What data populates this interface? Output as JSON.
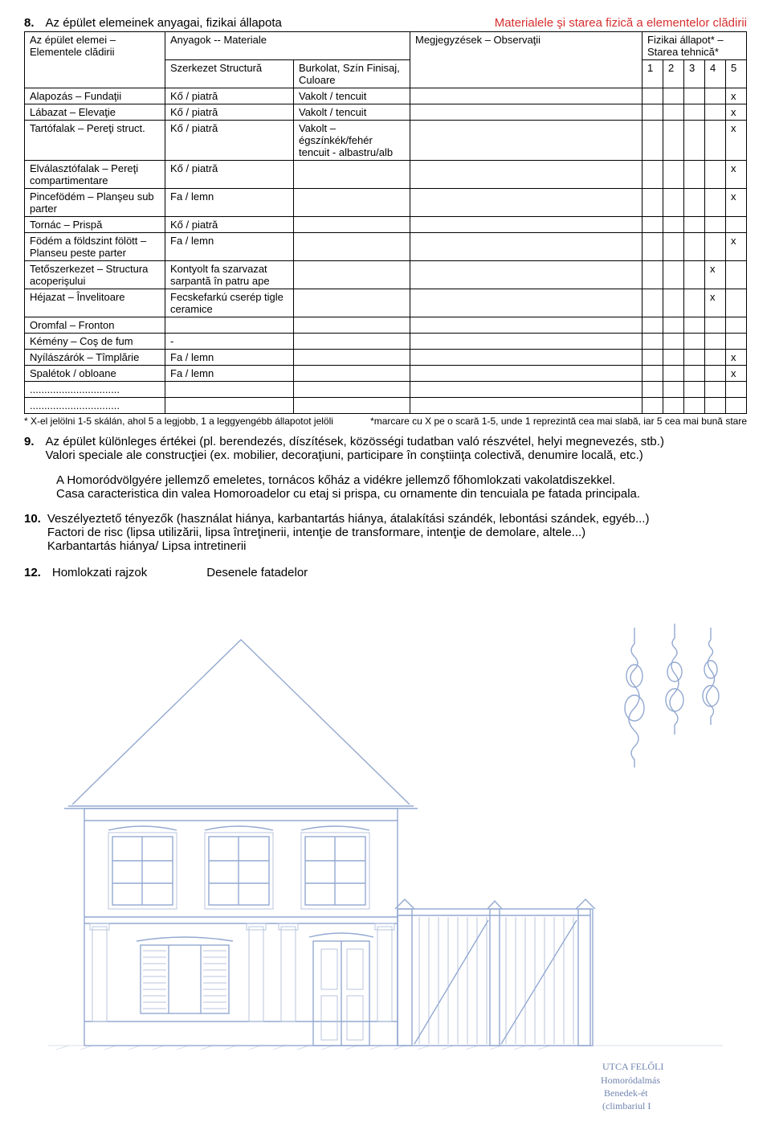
{
  "section8": {
    "num": "8.",
    "left": "Az épület elemeinek anyagai, fizikai állapota",
    "right": "Materialele şi starea fizică a elementelor clădirii",
    "header": {
      "elemei": "Az épület elemei – Elementele clădirii",
      "anyagok": "Anyagok   --   Materiale",
      "szerkezet": "Szerkezet Structură",
      "burkolat": "Burkolat, Szín Finisaj, Culoare",
      "obs": "Megjegyzések – Observaţii",
      "allapot": "Fizikai állapot* – Starea tehnică*",
      "n1": "1",
      "n2": "2",
      "n3": "3",
      "n4": "4",
      "n5": "5"
    },
    "rows": [
      {
        "elem": "Alapozás – Fundaţii",
        "mat1": "Kő / piatră",
        "mat2": "Vakolt / tencuit",
        "obs": "",
        "mark": {
          "5": "x"
        }
      },
      {
        "elem": "Lábazat – Elevaţie",
        "mat1": "Kő / piatră",
        "mat2": "Vakolt / tencuit",
        "obs": "",
        "mark": {
          "5": "x"
        }
      },
      {
        "elem": "Tartófalak – Pereţi struct.",
        "mat1": "Kő / piatră",
        "mat2": "Vakolt – égszínkék/fehér tencuit - albastru/alb",
        "obs": "",
        "mark": {
          "5": "x"
        }
      },
      {
        "elem": "Elválasztófalak – Pereţi compartimentare",
        "mat1": "Kő / piatră",
        "mat2": "",
        "obs": "",
        "mark": {
          "5": "x"
        }
      },
      {
        "elem": "Pincefödém – Planşeu sub parter",
        "mat1": "Fa / lemn",
        "mat2": "",
        "obs": "",
        "mark": {
          "5": "x"
        }
      },
      {
        "elem": "Tornác – Prispă",
        "mat1": "Kő / piatră",
        "mat2": "",
        "obs": "",
        "mark": {}
      },
      {
        "elem": "Födém a földszint fölött – Planseu peste parter",
        "mat1": "Fa / lemn",
        "mat2": "",
        "obs": "",
        "mark": {
          "5": "x"
        }
      },
      {
        "elem": "Tetőszerkezet – Structura acoperişului",
        "mat1": "Kontyolt fa szarvazat sarpantă în patru ape",
        "mat2": "",
        "obs": "",
        "mark": {
          "4": "x"
        }
      },
      {
        "elem": "Héjazat – Învelitoare",
        "mat1": "Fecskefarkú cserép tigle ceramice",
        "mat2": "",
        "obs": "",
        "mark": {
          "4": "x"
        }
      },
      {
        "elem": "Oromfal – Fronton",
        "mat1": "",
        "mat2": "",
        "obs": "",
        "mark": {}
      },
      {
        "elem": "Kémény – Coş de fum",
        "mat1": "-",
        "mat2": "",
        "obs": "",
        "mark": {}
      },
      {
        "elem": "Nyílászárók – Tîmplărie",
        "mat1": "Fa / lemn",
        "mat2": "",
        "obs": "",
        "mark": {
          "5": "x"
        }
      },
      {
        "elem": "Spalétok / obloane",
        "mat1": "Fa / lemn",
        "mat2": "",
        "obs": "",
        "mark": {
          "5": "x"
        }
      },
      {
        "elem": "...............................",
        "mat1": "",
        "mat2": "",
        "obs": "",
        "mark": {}
      },
      {
        "elem": "...............................",
        "mat1": "",
        "mat2": "",
        "obs": "",
        "mark": {}
      }
    ],
    "legend_left": "* X-el jelölni 1-5 skálán, ahol 5 a legjobb, 1 a leggyengébb állapotot jelöli",
    "legend_right": "*marcare cu X pe o scară 1-5, unde 1 reprezintă cea mai slabă, iar 5 cea mai bună stare"
  },
  "section9": {
    "num": "9.",
    "line1": "Az épület különleges értékei (pl. berendezés, díszítések, közösségi tudatban való részvétel, helyi megnevezés, stb.)",
    "line2": "Valori speciale ale construcţiei (ex. mobilier, decoraţiuni, participare în conştiinţa colectivă, denumire locală, etc.)",
    "para1": "A Homoródvölgyére jellemző emeletes, tornácos kőház a vidékre jellemző főhomlokzati vakolatdiszekkel.",
    "para2": "Casa caracteristica din valea Homoroadelor cu etaj si prispa, cu ornamente din tencuiala pe fatada principala."
  },
  "section10": {
    "num": "10.",
    "line1": "Veszélyeztető tényezők (használat hiánya, karbantartás hiánya, átalakítási szándék, lebontási szándek, egyéb...)",
    "line2": "Factori de risc (lipsa utilizării, lipsa întreţinerii, intenţie de transformare, intenţie de demolare, altele...)",
    "line3": "Karbantartás hiánya/ Lipsa intretinerii"
  },
  "section12": {
    "num": "12.",
    "label1": "Homlokzati rajzok",
    "label2": "Desenele fatadelor"
  },
  "drawing": {
    "stroke_color": "#93a9d1",
    "note_lines": [
      "UTCA FELŐLI",
      "Homoródalmás",
      "Benedek-ét",
      "(climbariul I"
    ]
  }
}
